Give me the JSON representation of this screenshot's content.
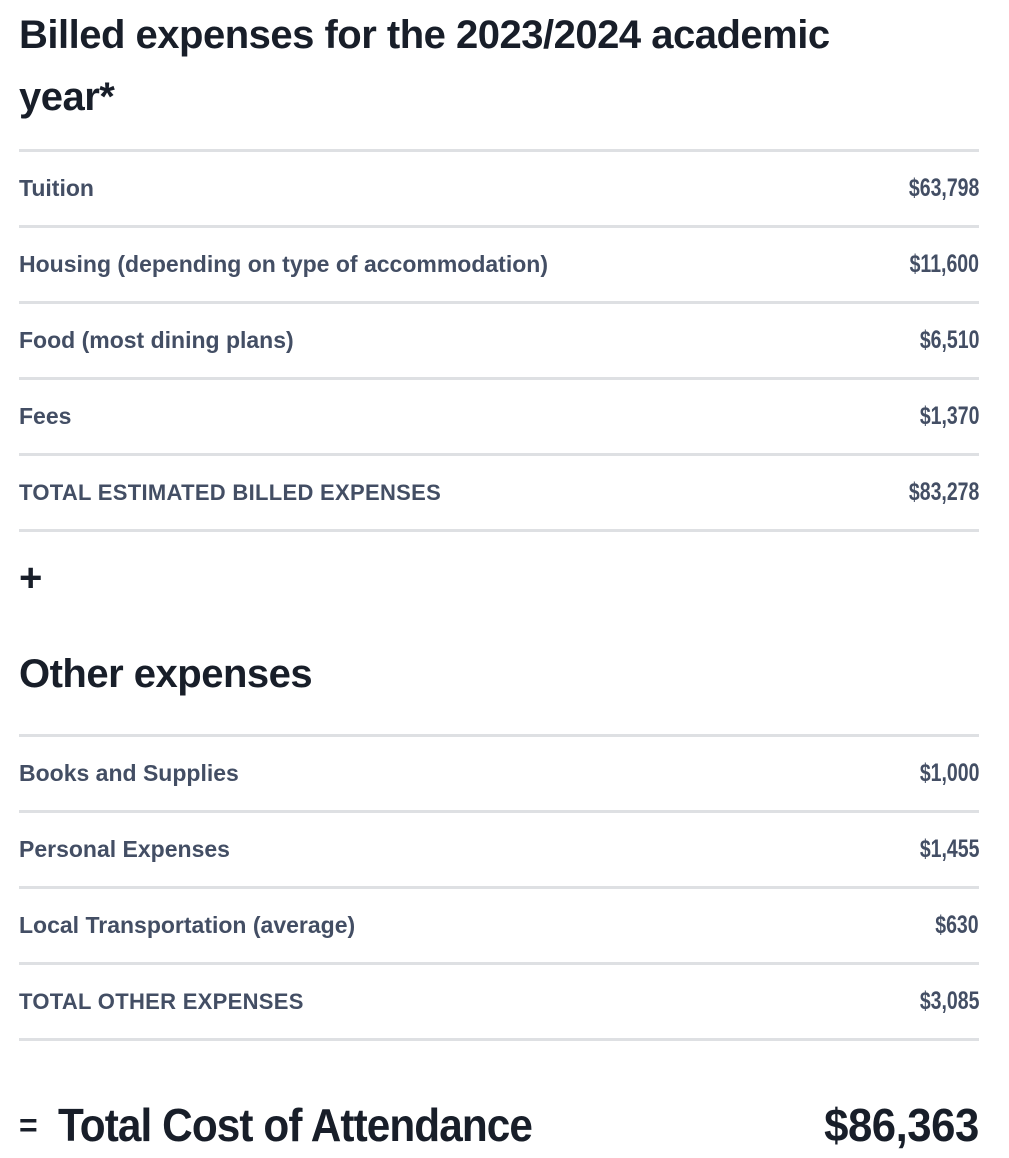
{
  "colors": {
    "heading_text": "#181e29",
    "row_text": "#434e64",
    "divider": "#dee0e3",
    "background": "#ffffff"
  },
  "operators": {
    "plus": "+",
    "equals": "="
  },
  "billed_expenses": {
    "heading": "Billed expenses for the 2023/2024 academic year*",
    "rows": [
      {
        "label": "Tuition",
        "amount": "$63,798"
      },
      {
        "label": "Housing (depending on type of accommodation)",
        "amount": "$11,600"
      },
      {
        "label": "Food (most dining plans)",
        "amount": "$6,510"
      },
      {
        "label": "Fees",
        "amount": "$1,370"
      }
    ],
    "total": {
      "label": "TOTAL ESTIMATED BILLED EXPENSES",
      "amount": "$83,278"
    }
  },
  "other_expenses": {
    "heading": "Other expenses",
    "rows": [
      {
        "label": "Books and Supplies",
        "amount": "$1,000"
      },
      {
        "label": "Personal Expenses",
        "amount": "$1,455"
      },
      {
        "label": "Local Transportation (average)",
        "amount": "$630"
      }
    ],
    "total": {
      "label": "TOTAL OTHER EXPENSES",
      "amount": "$3,085"
    }
  },
  "grand_total": {
    "label": "Total Cost of Attendance",
    "amount": "$86,363"
  }
}
